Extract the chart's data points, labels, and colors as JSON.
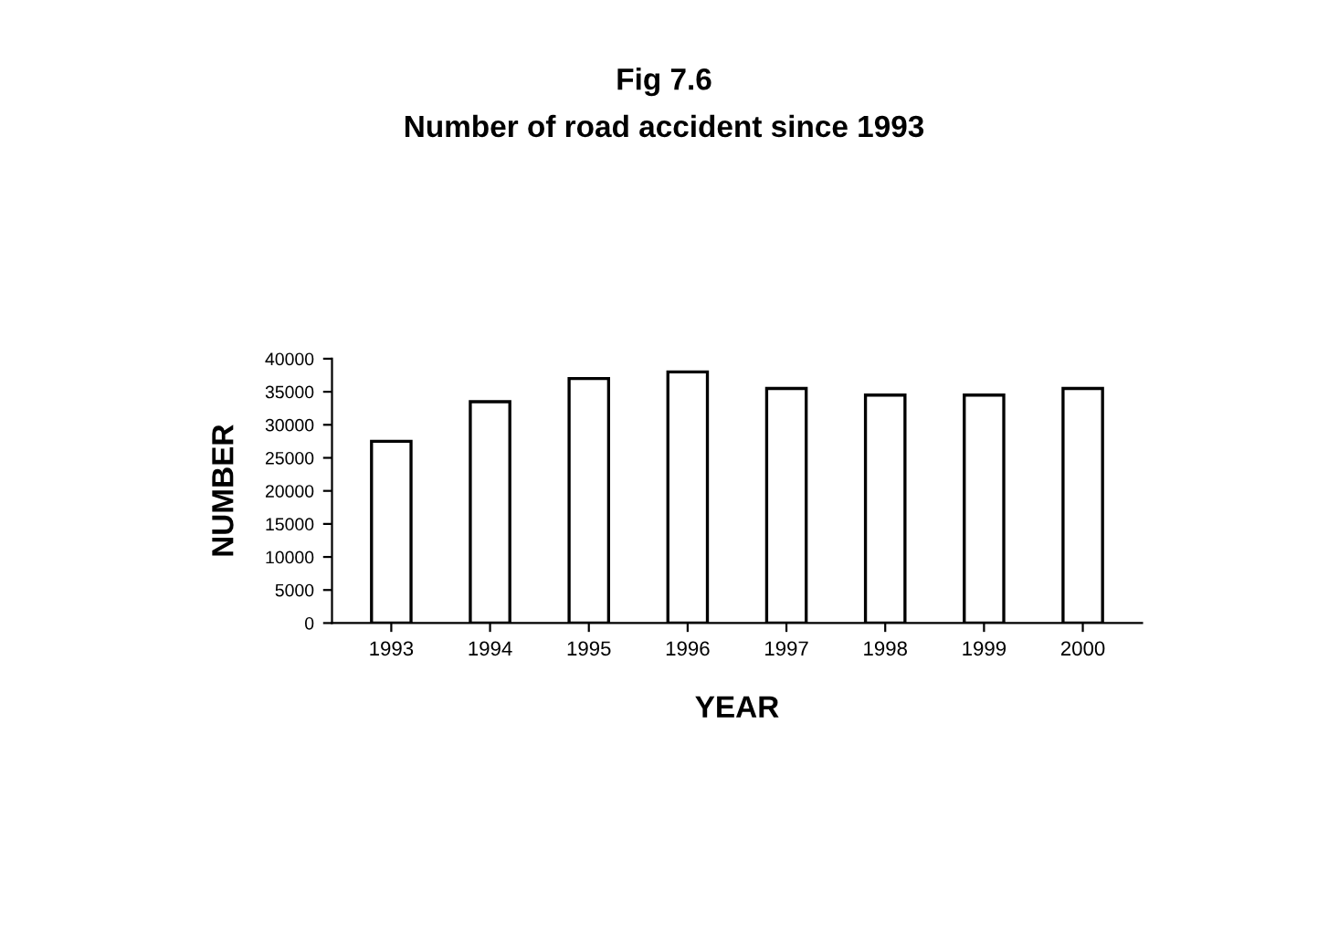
{
  "chart_data": {
    "type": "bar",
    "title": "Fig 7.6",
    "subtitle": "Number of road accident since 1993",
    "xlabel": "YEAR",
    "ylabel": "NUMBER",
    "categories": [
      "1993",
      "1994",
      "1995",
      "1996",
      "1997",
      "1998",
      "1999",
      "2000"
    ],
    "values": [
      27500,
      33500,
      37000,
      38000,
      35500,
      34500,
      34500,
      35500
    ],
    "color": "#ffffff",
    "ylim": [
      0,
      40000
    ],
    "yticks": [
      0,
      5000,
      10000,
      15000,
      20000,
      25000,
      30000,
      35000,
      40000
    ],
    "grid": false,
    "legend": false
  }
}
